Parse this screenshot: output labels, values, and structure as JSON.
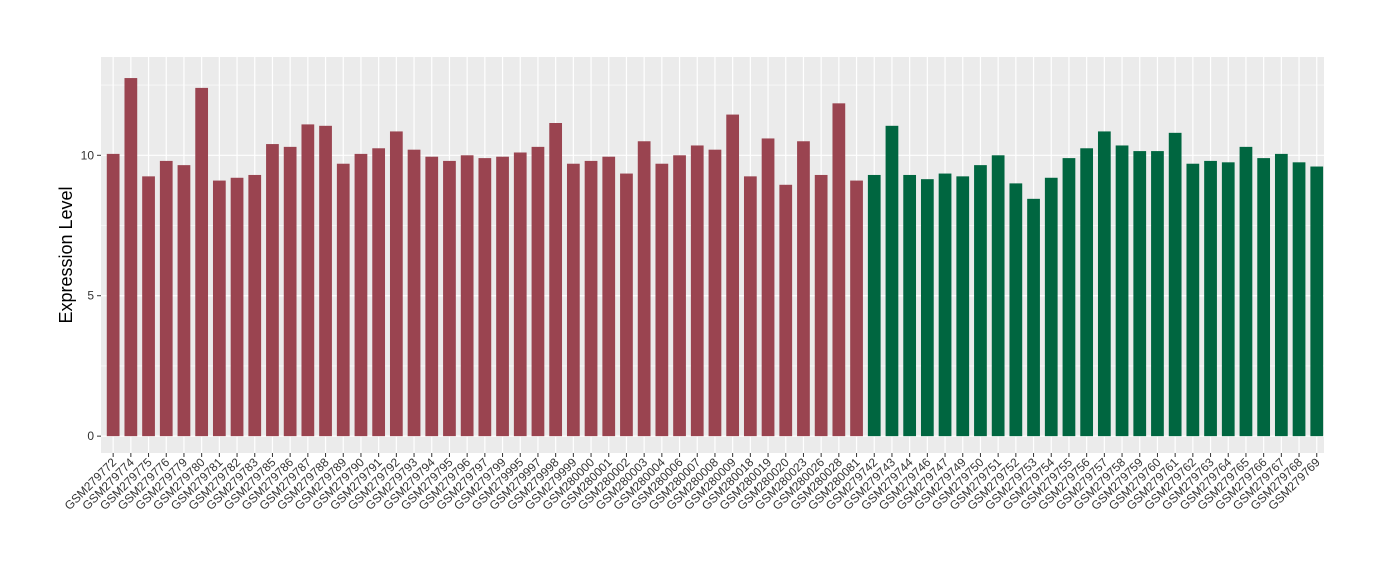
{
  "chart_data": {
    "type": "bar",
    "title": "",
    "xlabel": "",
    "ylabel": "Expression Level",
    "ylim": [
      -0.6,
      13.5
    ],
    "yticks": [
      0,
      5,
      10
    ],
    "grid": true,
    "legend": "none",
    "colors": {
      "group1": "#9A4450",
      "group2": "#006640",
      "panel": "#EBEBEB",
      "grid": "#FFFFFF"
    },
    "categories": [
      "GSM279772",
      "GSM279774",
      "GSM279775",
      "GSM279776",
      "GSM279779",
      "GSM279780",
      "GSM279781",
      "GSM279782",
      "GSM279783",
      "GSM279785",
      "GSM279786",
      "GSM279787",
      "GSM279788",
      "GSM279789",
      "GSM279790",
      "GSM279791",
      "GSM279792",
      "GSM279793",
      "GSM279794",
      "GSM279795",
      "GSM279796",
      "GSM279797",
      "GSM279799",
      "GSM279995",
      "GSM279997",
      "GSM279998",
      "GSM279999",
      "GSM280000",
      "GSM280001",
      "GSM280002",
      "GSM280003",
      "GSM280004",
      "GSM280006",
      "GSM280007",
      "GSM280008",
      "GSM280009",
      "GSM280018",
      "GSM280019",
      "GSM280020",
      "GSM280023",
      "GSM280026",
      "GSM280028",
      "GSM280081",
      "GSM279742",
      "GSM279743",
      "GSM279744",
      "GSM279746",
      "GSM279747",
      "GSM279749",
      "GSM279750",
      "GSM279751",
      "GSM279752",
      "GSM279753",
      "GSM279754",
      "GSM279755",
      "GSM279756",
      "GSM279757",
      "GSM279758",
      "GSM279759",
      "GSM279760",
      "GSM279761",
      "GSM279762",
      "GSM279763",
      "GSM279764",
      "GSM279765",
      "GSM279766",
      "GSM279767",
      "GSM279768",
      "GSM279769"
    ],
    "values": [
      10.05,
      12.75,
      9.25,
      9.8,
      9.65,
      12.4,
      9.1,
      9.2,
      9.3,
      10.4,
      10.3,
      11.1,
      11.05,
      9.7,
      10.05,
      10.25,
      10.85,
      10.2,
      9.95,
      9.8,
      10.0,
      9.9,
      9.95,
      10.1,
      10.3,
      11.15,
      9.7,
      9.8,
      9.95,
      9.35,
      10.5,
      9.7,
      10.0,
      10.35,
      10.2,
      11.45,
      9.25,
      10.6,
      8.95,
      10.5,
      9.3,
      11.85,
      9.1,
      9.3,
      11.05,
      9.3,
      9.15,
      9.35,
      9.25,
      9.65,
      10.0,
      9.0,
      8.45,
      9.2,
      9.9,
      10.25,
      10.85,
      10.35,
      10.15,
      10.15,
      10.8,
      9.7,
      9.8,
      9.75,
      10.3,
      9.9,
      10.05,
      9.75,
      9.6
    ],
    "groups": [
      1,
      1,
      1,
      1,
      1,
      1,
      1,
      1,
      1,
      1,
      1,
      1,
      1,
      1,
      1,
      1,
      1,
      1,
      1,
      1,
      1,
      1,
      1,
      1,
      1,
      1,
      1,
      1,
      1,
      1,
      1,
      1,
      1,
      1,
      1,
      1,
      1,
      1,
      1,
      1,
      1,
      1,
      1,
      2,
      2,
      2,
      2,
      2,
      2,
      2,
      2,
      2,
      2,
      2,
      2,
      2,
      2,
      2,
      2,
      2,
      2,
      2,
      2,
      2,
      2,
      2,
      2,
      2,
      2
    ]
  }
}
